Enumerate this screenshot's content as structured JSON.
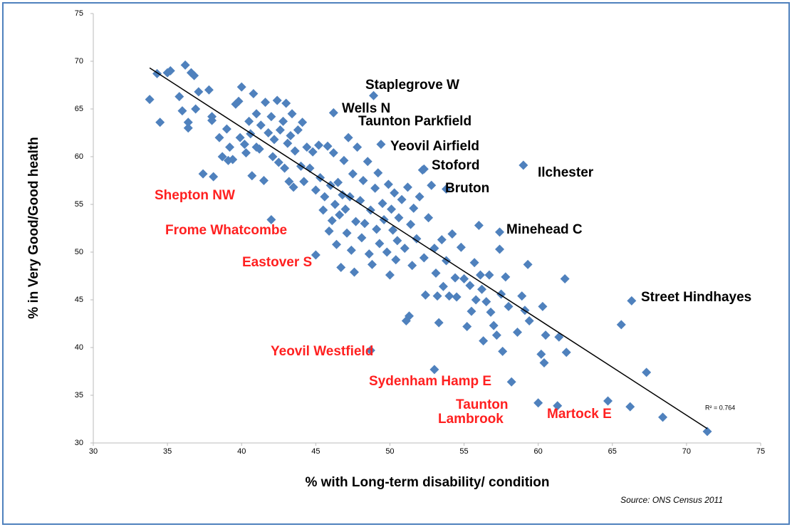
{
  "chart_data": {
    "type": "scatter",
    "x_label": "% with Long-term disability/ condition",
    "y_label": "% in Very Good/Good health",
    "source": "Source:  ONS Census  2011",
    "color": "#4f81bd",
    "xlim": [
      30,
      75
    ],
    "xticks": [
      30,
      35,
      40,
      45,
      50,
      55,
      60,
      65,
      70,
      75
    ],
    "ylim": [
      30,
      75
    ],
    "yticks": [
      30,
      35,
      40,
      45,
      50,
      55,
      60,
      65,
      70,
      75
    ],
    "x": [
      33.8,
      34.3,
      34.5,
      35.0,
      35.2,
      35.8,
      36.0,
      36.2,
      36.4,
      36.4,
      36.6,
      36.8,
      36.9,
      37.1,
      37.4,
      37.8,
      38.0,
      38.0,
      38.1,
      38.5,
      38.7,
      39.0,
      39.1,
      39.2,
      39.4,
      39.6,
      39.8,
      39.9,
      40.0,
      40.2,
      40.3,
      40.5,
      40.6,
      40.7,
      40.8,
      41.0,
      41.0,
      41.2,
      41.3,
      41.5,
      41.6,
      41.8,
      42.0,
      42.1,
      42.2,
      42.4,
      42.5,
      42.6,
      42.8,
      42.9,
      43.0,
      43.1,
      43.2,
      43.3,
      43.4,
      43.5,
      43.6,
      43.8,
      44.0,
      44.1,
      44.2,
      44.4,
      44.6,
      44.8,
      45.0,
      45.2,
      45.3,
      45.5,
      45.6,
      45.8,
      45.9,
      46.0,
      46.1,
      46.2,
      46.3,
      46.4,
      46.5,
      46.6,
      46.7,
      46.8,
      46.9,
      47.0,
      47.1,
      47.2,
      47.3,
      47.4,
      47.5,
      47.6,
      47.7,
      47.8,
      48.0,
      48.1,
      48.2,
      48.3,
      48.5,
      48.6,
      48.7,
      48.8,
      49.0,
      49.1,
      49.2,
      49.3,
      49.4,
      49.5,
      49.6,
      49.8,
      49.9,
      50.0,
      50.1,
      50.2,
      50.3,
      50.4,
      50.5,
      50.6,
      50.8,
      51.0,
      51.1,
      51.2,
      51.3,
      51.4,
      51.5,
      51.6,
      51.8,
      52.0,
      52.2,
      52.3,
      52.4,
      52.6,
      52.8,
      53.0,
      53.1,
      53.2,
      53.3,
      53.5,
      53.6,
      53.8,
      54.0,
      54.2,
      54.4,
      54.5,
      54.8,
      55.0,
      55.2,
      55.4,
      55.5,
      55.7,
      55.8,
      56.0,
      56.1,
      56.2,
      56.3,
      56.5,
      56.7,
      56.8,
      57.0,
      57.2,
      57.4,
      57.5,
      57.6,
      57.8,
      58.0,
      58.2,
      58.6,
      58.9,
      59.1,
      59.3,
      59.4,
      60.0,
      60.2,
      60.3,
      60.4,
      60.5,
      61.3,
      61.4,
      61.8,
      61.9,
      64.7,
      65.6,
      66.2,
      66.3,
      67.3,
      68.4,
      71.4,
      48.9,
      46.2,
      52.3,
      59.0,
      53.8,
      57.4,
      42.0,
      45.0,
      48.7,
      53.0
    ],
    "values": [
      66.0,
      68.7,
      63.6,
      68.8,
      69.0,
      66.3,
      64.8,
      69.6,
      63.6,
      63.0,
      68.8,
      68.5,
      65.0,
      66.8,
      58.2,
      67.0,
      64.2,
      63.8,
      57.9,
      62.0,
      60.0,
      62.9,
      59.6,
      61.0,
      59.7,
      65.5,
      65.8,
      62.0,
      67.3,
      61.3,
      60.4,
      63.7,
      62.4,
      58.0,
      66.6,
      61.0,
      64.5,
      60.8,
      63.3,
      57.5,
      65.7,
      62.5,
      64.2,
      60.0,
      61.8,
      65.9,
      59.4,
      62.8,
      63.7,
      58.8,
      65.6,
      61.4,
      57.4,
      62.2,
      64.5,
      56.8,
      60.6,
      62.8,
      59.0,
      63.6,
      57.4,
      61.0,
      58.8,
      60.5,
      56.5,
      61.2,
      57.8,
      54.4,
      55.8,
      61.1,
      52.2,
      57.0,
      53.3,
      60.4,
      55.0,
      50.8,
      57.3,
      53.9,
      48.4,
      56.0,
      59.6,
      54.5,
      52.0,
      62.0,
      55.8,
      50.2,
      58.2,
      47.9,
      53.2,
      61.0,
      55.4,
      51.5,
      57.5,
      53.0,
      59.5,
      49.8,
      54.4,
      48.7,
      56.7,
      52.4,
      58.3,
      50.9,
      61.3,
      55.1,
      53.4,
      50.0,
      57.1,
      47.6,
      54.5,
      52.3,
      56.2,
      49.2,
      51.2,
      53.6,
      55.5,
      50.4,
      42.8,
      56.8,
      43.3,
      52.9,
      48.6,
      54.6,
      51.4,
      55.8,
      58.6,
      49.4,
      45.5,
      53.6,
      57.0,
      50.4,
      47.8,
      45.4,
      42.6,
      51.3,
      46.4,
      49.1,
      45.4,
      51.9,
      47.3,
      45.3,
      50.5,
      47.2,
      42.2,
      46.5,
      43.8,
      48.9,
      45.0,
      52.8,
      47.6,
      46.1,
      40.7,
      44.8,
      47.6,
      43.7,
      42.3,
      41.3,
      50.3,
      45.6,
      39.6,
      47.4,
      44.3,
      36.4,
      41.6,
      45.4,
      43.9,
      48.7,
      42.8,
      34.2,
      39.3,
      44.3,
      38.4,
      41.3,
      33.9,
      41.1,
      47.2,
      39.5,
      34.4,
      42.4,
      33.8,
      44.9,
      37.4,
      32.7,
      31.2,
      66.4,
      64.6,
      58.7,
      59.1,
      56.6,
      52.1,
      53.4,
      49.7,
      39.7,
      37.7
    ],
    "trendline": {
      "x": [
        33.8,
        71.4
      ],
      "values": [
        69.3,
        31.5
      ],
      "label": "R² = 0.764",
      "color": "#000000"
    },
    "annotations": [
      {
        "text": "Staplegrove W",
        "color": "#000000"
      },
      {
        "text": "Wells N",
        "color": "#000000"
      },
      {
        "text": "Taunton Parkfield",
        "color": "#000000"
      },
      {
        "text": "Yeovil Airfield",
        "color": "#000000"
      },
      {
        "text": "Stoford",
        "color": "#000000"
      },
      {
        "text": "Ilchester",
        "color": "#000000"
      },
      {
        "text": "Bruton",
        "color": "#000000"
      },
      {
        "text": "Shepton NW",
        "color": "#ff2020"
      },
      {
        "text": "Frome Whatcombe",
        "color": "#ff2020"
      },
      {
        "text": "Minehead C",
        "color": "#000000"
      },
      {
        "text": "Eastover S",
        "color": "#ff2020"
      },
      {
        "text": "Street Hindhayes",
        "color": "#000000"
      },
      {
        "text": "Yeovil Westfield",
        "color": "#ff2020"
      },
      {
        "text": "Sydenham Hamp E",
        "color": "#ff2020"
      },
      {
        "text": "Taunton",
        "color": "#ff2020"
      },
      {
        "text": "Lambrook",
        "color": "#ff2020"
      },
      {
        "text": "Martock E",
        "color": "#ff2020"
      }
    ]
  }
}
